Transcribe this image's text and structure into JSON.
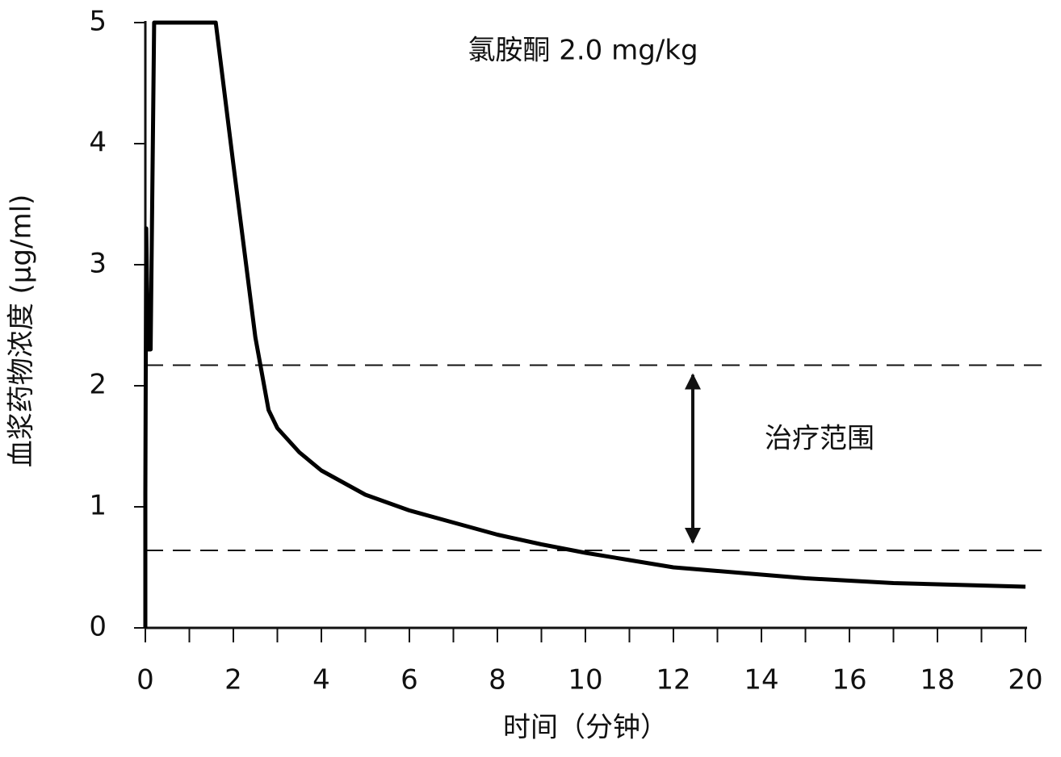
{
  "chart_data": {
    "type": "line",
    "title": "氯胺酮 2.0 mg/kg",
    "x_label": "时间（分钟）",
    "y_label": "血浆药物浓度 (μg/ml)",
    "annotation": "治疗范围",
    "x": [
      0,
      0,
      0.02,
      0.06,
      0.12,
      0.2,
      1.6,
      2,
      2.5,
      2.8,
      3,
      3.5,
      4,
      5,
      6,
      7,
      8,
      9,
      10,
      11,
      12,
      13,
      14,
      15,
      16,
      17,
      18,
      19,
      20
    ],
    "series": [
      {
        "name": "氯胺酮",
        "color": "#000000",
        "values": [
          0,
          1.1,
          3.3,
          2.3,
          2.3,
          5,
          5,
          3.83,
          2.4,
          1.8,
          1.65,
          1.45,
          1.3,
          1.1,
          0.97,
          0.87,
          0.77,
          0.69,
          0.62,
          0.56,
          0.5,
          0.47,
          0.44,
          0.41,
          0.39,
          0.37,
          0.36,
          0.35,
          0.34
        ]
      }
    ],
    "reference_lines": [
      2.17,
      0.64
    ],
    "xlim": [
      0,
      20
    ],
    "ylim": [
      0,
      5
    ],
    "xticks": [
      0,
      2,
      4,
      6,
      8,
      10,
      12,
      14,
      16,
      18,
      20
    ],
    "xminorticks": [
      1,
      3,
      5,
      7,
      9,
      11,
      13,
      15,
      17,
      19
    ],
    "yticks": [
      0,
      1,
      2,
      3,
      4,
      5
    ]
  }
}
